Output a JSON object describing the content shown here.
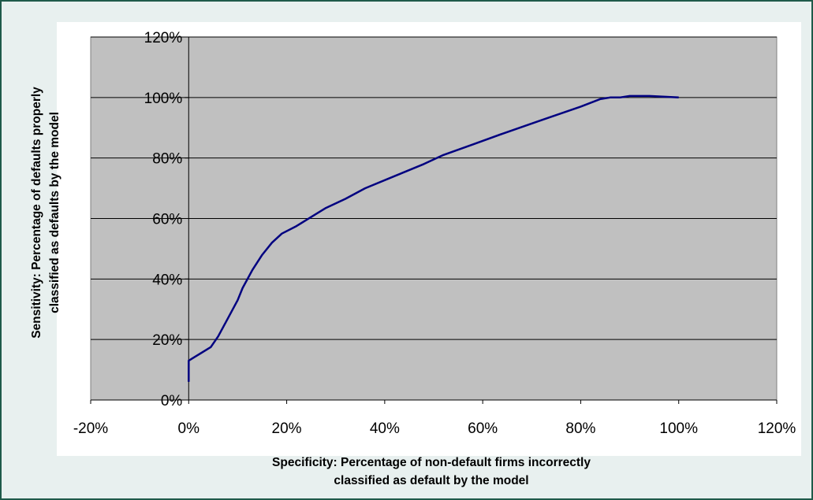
{
  "chart_data": {
    "type": "line",
    "xlabel_lines": [
      "Specificity: Percentage of non-default firms incorrectly",
      "classified as default by the model"
    ],
    "ylabel_lines": [
      "Sensitivity: Percentage of defaults properly",
      "classified as defaults by the model"
    ],
    "xlim": [
      -20,
      120
    ],
    "ylim": [
      0,
      120
    ],
    "x_ticks": [
      -20,
      0,
      20,
      40,
      60,
      80,
      100,
      120
    ],
    "y_ticks": [
      0,
      20,
      40,
      60,
      80,
      100,
      120
    ],
    "x_tick_labels": [
      "-20%",
      "0%",
      "20%",
      "40%",
      "60%",
      "80%",
      "100%",
      "120%"
    ],
    "y_tick_labels": [
      "0%",
      "20%",
      "40%",
      "60%",
      "80%",
      "100%",
      "120%"
    ],
    "grid": "horizontal",
    "plot_background": "#c0c0c0",
    "series": [
      {
        "color": "#000080",
        "x": [
          0,
          0,
          1,
          4.5,
          6,
          8,
          10,
          11,
          13,
          15,
          17,
          19,
          22,
          25,
          28,
          32,
          36,
          42,
          48,
          52,
          58,
          64,
          72,
          80,
          84,
          86,
          88,
          90,
          94,
          100
        ],
        "y": [
          6,
          13,
          14,
          17.5,
          21,
          27,
          33,
          37,
          43,
          48,
          52,
          55,
          57.5,
          60.5,
          63.5,
          66.5,
          70,
          74,
          78,
          81,
          84.5,
          88,
          92.5,
          97,
          99.5,
          100,
          100,
          100.5,
          100.5,
          100
        ]
      }
    ]
  }
}
